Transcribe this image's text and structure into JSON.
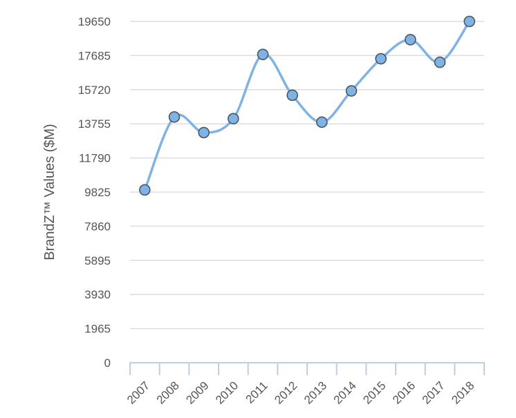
{
  "chart_data": {
    "type": "line",
    "title": "",
    "xlabel": "",
    "ylabel": "BrandZ™ Values ($M)",
    "categories": [
      "2007",
      "2008",
      "2009",
      "2010",
      "2011",
      "2012",
      "2013",
      "2014",
      "2015",
      "2016",
      "2017",
      "2018"
    ],
    "series": [
      {
        "name": "",
        "values": [
          9950,
          14150,
          13250,
          14050,
          17750,
          15400,
          13850,
          15650,
          17500,
          18600,
          17300,
          19650
        ]
      }
    ],
    "y_ticks": [
      "0",
      "1965",
      "3930",
      "5895",
      "7860",
      "9825",
      "11790",
      "13755",
      "15720",
      "17685",
      "19650"
    ],
    "ylim": [
      0,
      19650
    ],
    "grid": "horizontal",
    "legend": "none",
    "colors": {
      "line": "#7fb2e5",
      "marker_fill": "#7fb2e5",
      "marker_stroke": "#4a5560",
      "grid": "#dddddd",
      "axis": "#b9cfe6",
      "text": "#555555"
    }
  }
}
